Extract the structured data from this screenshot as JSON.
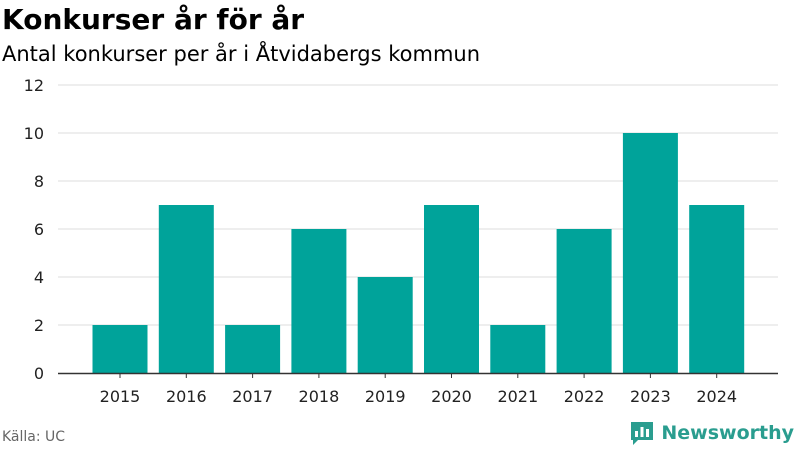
{
  "header": {
    "title": "Konkurser år för år",
    "subtitle": "Antal konkurser per år i Åtvidabergs kommun"
  },
  "footer": {
    "source": "Källa: UC",
    "brand": "Newsworthy",
    "brand_icon": "bar-chart-speech-bubble-icon"
  },
  "colors": {
    "bar": "#00a39a",
    "grid": "#dddddd",
    "axis": "#333333",
    "brand": "#2a9d8f"
  },
  "chart_data": {
    "type": "bar",
    "categories": [
      "2015",
      "2016",
      "2017",
      "2018",
      "2019",
      "2020",
      "2021",
      "2022",
      "2023",
      "2024"
    ],
    "values": [
      2,
      7,
      2,
      6,
      4,
      7,
      2,
      6,
      10,
      7
    ],
    "title": "Konkurser år för år",
    "subtitle": "Antal konkurser per år i Åtvidabergs kommun",
    "xlabel": "",
    "ylabel": "",
    "ylim": [
      0,
      12
    ],
    "yticks": [
      0,
      2,
      4,
      6,
      8,
      10,
      12
    ],
    "grid": true,
    "legend": "none"
  }
}
